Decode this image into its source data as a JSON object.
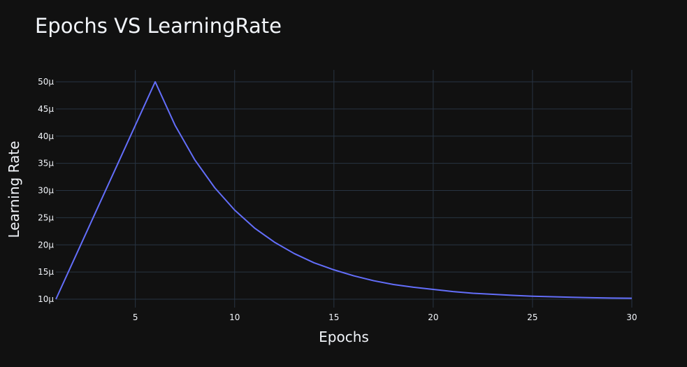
{
  "colors": {
    "background": "#111111",
    "grid": "#283442",
    "text": "#f2f5fa",
    "line": "#636efa"
  },
  "chart_data": {
    "type": "line",
    "title": "Epochs VS LearningRate",
    "xlabel": "Epochs",
    "ylabel": "Learning Rate",
    "xlim": [
      1,
      30
    ],
    "ylim": [
      9.0,
      51.0
    ],
    "y_unit_suffix": "μ",
    "grid": true,
    "legend": "none",
    "x_ticks": [
      5,
      10,
      15,
      20,
      25,
      30
    ],
    "y_ticks": [
      10,
      15,
      20,
      25,
      30,
      35,
      40,
      45,
      50
    ],
    "series": [
      {
        "x": [
          1,
          2,
          3,
          4,
          5,
          6,
          7,
          8,
          9,
          10,
          11,
          12,
          13,
          14,
          15,
          16,
          17,
          18,
          19,
          20,
          21,
          22,
          23,
          24,
          25,
          26,
          27,
          28,
          29,
          30
        ],
        "values": [
          10,
          18,
          26,
          34,
          42,
          50,
          42,
          35.6,
          30.5,
          26.4,
          23.1,
          20.5,
          18.4,
          16.7,
          15.4,
          14.3,
          13.4,
          12.7,
          12.2,
          11.8,
          11.4,
          11.1,
          10.9,
          10.7,
          10.55,
          10.45,
          10.35,
          10.27,
          10.21,
          10.17
        ]
      }
    ]
  }
}
